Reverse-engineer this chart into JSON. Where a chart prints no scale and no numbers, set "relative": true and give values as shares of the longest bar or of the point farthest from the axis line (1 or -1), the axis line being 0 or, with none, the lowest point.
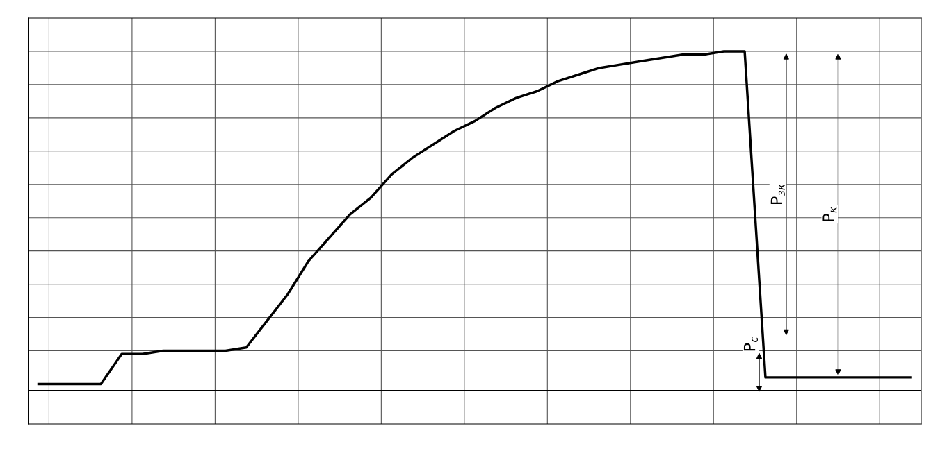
{
  "chart_data": {
    "type": "line",
    "relative": true,
    "grid": true,
    "legend": false,
    "tick_labels": false,
    "categories": [
      null,
      null,
      null,
      null,
      null,
      null,
      null,
      null,
      null,
      null,
      null,
      null,
      null,
      null,
      null,
      null,
      null,
      null,
      null,
      null,
      null,
      null,
      null,
      null,
      null,
      null,
      null,
      null,
      null,
      null,
      null,
      null,
      null,
      null,
      null,
      null,
      null,
      null,
      null,
      null,
      null,
      null,
      null
    ],
    "series": [
      {
        "color": "#000000",
        "values": [
          0,
          0,
          0,
          0,
          0.09,
          0.09,
          0.1,
          0.1,
          0.1,
          0.1,
          0.11,
          0.19,
          0.27,
          0.37,
          0.44,
          0.51,
          0.56,
          0.63,
          0.68,
          0.72,
          0.76,
          0.79,
          0.83,
          0.86,
          0.88,
          0.91,
          0.93,
          0.95,
          0.96,
          0.97,
          0.98,
          0.99,
          0.99,
          1.0,
          1.0,
          0.02,
          0.02,
          0.02,
          0.02,
          0.02,
          0.02,
          0.02,
          0.02
        ]
      }
    ],
    "annotations": [
      "P$_{с}$",
      "P$_{зк}$",
      "P$_{к}$"
    ]
  }
}
